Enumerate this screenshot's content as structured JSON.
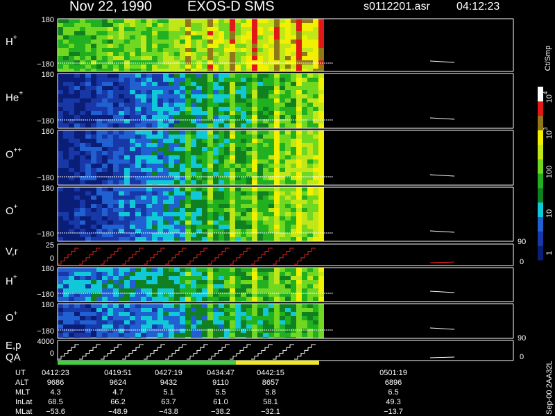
{
  "header": {
    "date": "Nov 22, 1990",
    "instrument": "EXOS-D SMS",
    "file": "s0112201.asr",
    "time": "04:12:23"
  },
  "panels": [
    {
      "label": "H",
      "sup": "+",
      "ticks": [
        "180",
        "−180"
      ]
    },
    {
      "label": "He",
      "sup": "+",
      "ticks": [
        "180",
        "−180"
      ]
    },
    {
      "label": "O",
      "sup": "++",
      "ticks": [
        "180",
        "−180"
      ]
    },
    {
      "label": "O",
      "sup": "+",
      "ticks": [
        "180",
        "−180"
      ]
    },
    {
      "label": "V,r",
      "ticks": [
        "25",
        "0"
      ],
      "right_ticks": [
        "90",
        "0"
      ]
    },
    {
      "label": "H",
      "sup": "+",
      "ticks": [
        "180",
        "−180"
      ]
    },
    {
      "label": "O",
      "sup": "+",
      "ticks": [
        "180",
        "−180"
      ]
    },
    {
      "label": "E,p",
      "label2": "QA",
      "ticks": [
        "4000",
        "0"
      ],
      "right_ticks": [
        "90",
        "0"
      ]
    }
  ],
  "colorbar": {
    "title": "Ct/Smp",
    "labels": [
      {
        "base": "10",
        "exp": "4"
      },
      {
        "base": "10",
        "exp": "3"
      },
      {
        "base": "100"
      },
      {
        "base": "10"
      },
      {
        "base": "1"
      }
    ]
  },
  "stamp": "Sep-00 2AA32L",
  "footer": {
    "rows": [
      {
        "label": "UT",
        "values": [
          "0412:23",
          "0419:51",
          "0427:19",
          "0434:47",
          "0442:15",
          "0501:19"
        ]
      },
      {
        "label": "ALT",
        "values": [
          "9686",
          "9624",
          "9432",
          "9110",
          "8657",
          "6896"
        ]
      },
      {
        "label": "MLT",
        "values": [
          "4.3",
          "4.7",
          "5.1",
          "5.5",
          "5.8",
          "6.5"
        ]
      },
      {
        "label": "InLat",
        "values": [
          "68.5",
          "66.2",
          "63.7",
          "61.0",
          "58.1",
          "49.3"
        ]
      },
      {
        "label": "MLat",
        "values": [
          "−53.6",
          "−48.9",
          "−43.8",
          "−38.2",
          "−32.1",
          "−13.7"
        ]
      }
    ]
  }
}
